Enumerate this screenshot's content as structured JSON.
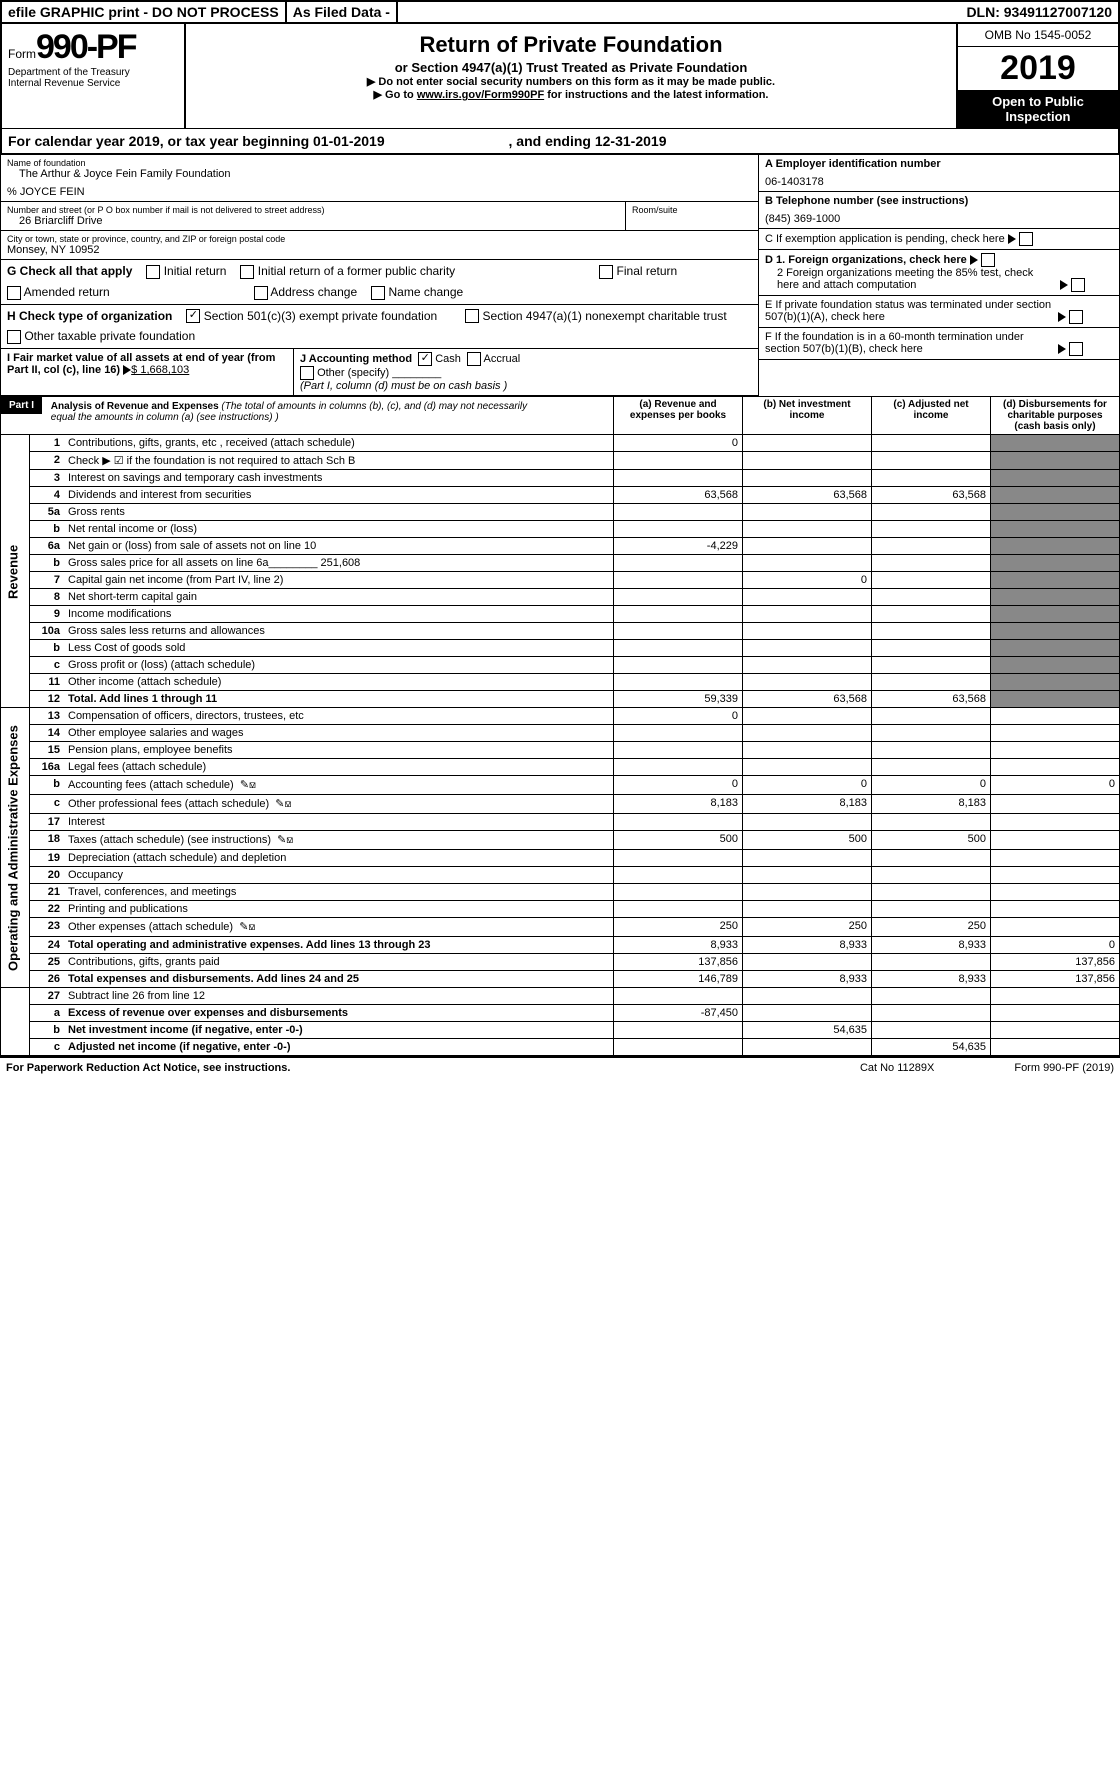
{
  "top": {
    "l": "efile GRAPHIC print - DO NOT PROCESS",
    "m": "As Filed Data -",
    "r": "DLN: 93491127007120"
  },
  "hdr": {
    "form_prefix": "Form",
    "form_no": "990-PF",
    "dept": "Department of the Treasury",
    "irs": "Internal Revenue Service",
    "title": "Return of Private Foundation",
    "sub": "or Section 4947(a)(1) Trust Treated as Private Foundation",
    "hint1": "▶ Do not enter social security numbers on this form as it may be made public.",
    "hint2": "▶ Go to ",
    "hint2_link": "www.irs.gov/Form990PF",
    "hint2_tail": " for instructions and the latest information.",
    "omb": "OMB No 1545-0052",
    "year": "2019",
    "inspect": "Open to Public Inspection"
  },
  "cal": {
    "a": "For calendar year 2019, or tax year beginning 01-01-2019",
    "b": ", and ending 12-31-2019"
  },
  "f": {
    "name_lbl": "Name of foundation",
    "name": "The Arthur & Joyce Fein Family Foundation",
    "care": "% JOYCE FEIN",
    "addr_lbl": "Number and street (or P O  box number if mail is not delivered to street address)",
    "addr": "26 Briarcliff Drive",
    "room_lbl": "Room/suite",
    "city_lbl": "City or town, state or province, country, and ZIP or foreign postal code",
    "city": "Monsey, NY  10952",
    "A_lbl": "A Employer identification number",
    "A": "06-1403178",
    "B_lbl": "B Telephone number (see instructions)",
    "B": "(845) 369-1000",
    "C": "C If exemption application is pending, check here",
    "D1": "D 1. Foreign organizations, check here",
    "D2": "2 Foreign organizations meeting the 85% test, check here and attach computation",
    "E": "E If private foundation status was terminated under section 507(b)(1)(A), check here",
    "F": "F If the foundation is in a 60-month termination under section 507(b)(1)(B), check here"
  },
  "G": {
    "lbl": "G Check all that apply",
    "o1": "Initial return",
    "o2": "Initial return of a former public charity",
    "o3": "Final return",
    "o4": "Amended return",
    "o5": "Address change",
    "o6": "Name change"
  },
  "H": {
    "lbl": "H Check type of organization",
    "o1": "Section 501(c)(3) exempt private foundation",
    "o2": "Section 4947(a)(1) nonexempt charitable trust",
    "o3": "Other taxable private foundation"
  },
  "I": {
    "lbl": "I Fair market value of all assets at end of year (from Part II, col  (c), line 16)",
    "amt": "$ 1,668,103"
  },
  "J": {
    "lbl": "J Accounting method",
    "o1": "Cash",
    "o2": "Accrual",
    "o3": "Other (specify)",
    "note": "(Part I, column (d) must be on cash basis )"
  },
  "part1": {
    "tag": "Part I",
    "title": "Analysis of Revenue and Expenses",
    "note": "(The total of amounts in columns (b), (c), and (d) may not necessarily equal the amounts in column (a) (see instructions) )",
    "ha": "(a) Revenue and expenses per books",
    "hb": "(b) Net investment income",
    "hc": "(c) Adjusted net income",
    "hd": "(d) Disbursements for charitable purposes (cash basis only)"
  },
  "rows": [
    {
      "n": "1",
      "d": "Contributions, gifts, grants, etc , received (attach schedule)",
      "a": "0"
    },
    {
      "n": "2",
      "d": "Check ▶ ☑ if the foundation is not required to attach Sch  B"
    },
    {
      "n": "3",
      "d": "Interest on savings and temporary cash investments"
    },
    {
      "n": "4",
      "d": "Dividends and interest from securities",
      "a": "63,568",
      "b": "63,568",
      "c": "63,568"
    },
    {
      "n": "5a",
      "d": "Gross rents"
    },
    {
      "n": "b",
      "d": "Net rental income or (loss)"
    },
    {
      "n": "6a",
      "d": "Net gain or (loss) from sale of assets not on line 10",
      "a": "-4,229"
    },
    {
      "n": "b",
      "d": "Gross sales price for all assets on line 6a________ 251,608"
    },
    {
      "n": "7",
      "d": "Capital gain net income (from Part IV, line 2)",
      "b": "0"
    },
    {
      "n": "8",
      "d": "Net short-term capital gain"
    },
    {
      "n": "9",
      "d": "Income modifications"
    },
    {
      "n": "10a",
      "d": "Gross sales less returns and allowances"
    },
    {
      "n": "b",
      "d": "Less  Cost of goods sold"
    },
    {
      "n": "c",
      "d": "Gross profit or (loss) (attach schedule)"
    },
    {
      "n": "11",
      "d": "Other income (attach schedule)"
    },
    {
      "n": "12",
      "d": "Total. Add lines 1 through 11",
      "a": "59,339",
      "b": "63,568",
      "c": "63,568",
      "bold": true
    }
  ],
  "exp": [
    {
      "n": "13",
      "d": "Compensation of officers, directors, trustees, etc",
      "a": "0"
    },
    {
      "n": "14",
      "d": "Other employee salaries and wages"
    },
    {
      "n": "15",
      "d": "Pension plans, employee benefits"
    },
    {
      "n": "16a",
      "d": "Legal fees (attach schedule)"
    },
    {
      "n": "b",
      "d": "Accounting fees (attach schedule)",
      "icon": true,
      "a": "0",
      "b": "0",
      "c": "0",
      "dd": "0"
    },
    {
      "n": "c",
      "d": "Other professional fees (attach schedule)",
      "icon": true,
      "a": "8,183",
      "b": "8,183",
      "c": "8,183"
    },
    {
      "n": "17",
      "d": "Interest"
    },
    {
      "n": "18",
      "d": "Taxes (attach schedule) (see instructions)",
      "icon": true,
      "a": "500",
      "b": "500",
      "c": "500"
    },
    {
      "n": "19",
      "d": "Depreciation (attach schedule) and depletion"
    },
    {
      "n": "20",
      "d": "Occupancy"
    },
    {
      "n": "21",
      "d": "Travel, conferences, and meetings"
    },
    {
      "n": "22",
      "d": "Printing and publications"
    },
    {
      "n": "23",
      "d": "Other expenses (attach schedule)",
      "icon": true,
      "a": "250",
      "b": "250",
      "c": "250"
    },
    {
      "n": "24",
      "d": "Total operating and administrative expenses. Add lines 13 through 23",
      "a": "8,933",
      "b": "8,933",
      "c": "8,933",
      "dd": "0",
      "bold": true
    },
    {
      "n": "25",
      "d": "Contributions, gifts, grants paid",
      "a": "137,856",
      "dd": "137,856"
    },
    {
      "n": "26",
      "d": "Total expenses and disbursements. Add lines 24 and 25",
      "a": "146,789",
      "b": "8,933",
      "c": "8,933",
      "dd": "137,856",
      "bold": true
    }
  ],
  "bot": [
    {
      "n": "27",
      "d": "Subtract line 26 from line 12"
    },
    {
      "n": "a",
      "d": "Excess of revenue over expenses and disbursements",
      "a": "-87,450",
      "bold": true
    },
    {
      "n": "b",
      "d": "Net investment income (if negative, enter -0-)",
      "b": "54,635",
      "bold": true
    },
    {
      "n": "c",
      "d": "Adjusted net income (if negative, enter -0-)",
      "c": "54,635",
      "bold": true
    }
  ],
  "rot": {
    "rev": "Revenue",
    "exp": "Operating and Administrative Expenses"
  },
  "foot": {
    "l": "For Paperwork Reduction Act Notice, see instructions.",
    "m": "Cat  No  11289X",
    "r": "Form 990-PF (2019)"
  }
}
